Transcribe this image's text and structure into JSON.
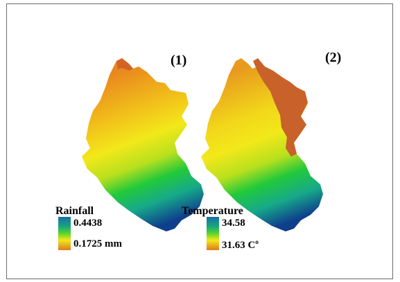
{
  "panels": [
    {
      "label": "(1)"
    },
    {
      "label": "(2)"
    }
  ],
  "legends": [
    {
      "title": "Rainfall",
      "high_value": "0.4438",
      "low_value": "0.1725 mm",
      "high_color": "#1a6fa8",
      "low_color": "#e07a1e"
    },
    {
      "title": "Temperature",
      "high_value": "34.58",
      "low_value": "31.63 C",
      "low_value_superscript": "o",
      "high_color": "#1a6fa8",
      "low_color": "#e07a1e"
    }
  ],
  "colors": {
    "blue": "#0e3f8c",
    "teal": "#1aa57e",
    "green": "#22c93a",
    "yellow": "#f2e81a",
    "orange": "#f0a21c",
    "brown": "#c8622a"
  }
}
